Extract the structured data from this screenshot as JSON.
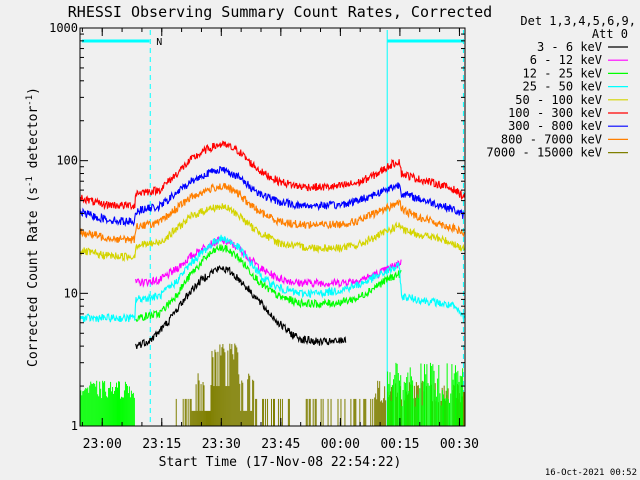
{
  "chart_data": {
    "type": "line",
    "title": "RHESSI Observing Summary Count Rates, Corrected",
    "xlabel": "Start Time (17-Nov-08 22:54:22)",
    "ylabel": "Corrected Count Rate (s⁻¹ detector⁻¹)",
    "ylabel_parts": {
      "pre": "Corrected Count Rate (s",
      "sup1": "-1",
      "mid": " detector",
      "sup2": "-1",
      "post": ")"
    },
    "yscale": "log",
    "ylim": [
      1,
      1000
    ],
    "xlim_minutes": [
      0,
      97
    ],
    "x_ticks": [
      {
        "label": "23:00",
        "min": 5.6
      },
      {
        "label": "23:15",
        "min": 20.6
      },
      {
        "label": "23:30",
        "min": 35.6
      },
      {
        "label": "23:45",
        "min": 50.6
      },
      {
        "label": "00:00",
        "min": 65.6
      },
      {
        "label": "00:15",
        "min": 80.6
      },
      {
        "label": "00:30",
        "min": 95.6
      }
    ],
    "y_ticks": [
      {
        "label": "1",
        "value": 1
      },
      {
        "label": "10",
        "value": 10
      },
      {
        "label": "100",
        "value": 100
      },
      {
        "label": "1000",
        "value": 1000
      }
    ],
    "legend": {
      "header": [
        "Det 1,3,4,5,6,9,",
        "Att 0"
      ],
      "placement": "top-right, outside plot"
    },
    "footer_date": "16-Oct-2021 00:52",
    "flags": {
      "night_label": "N",
      "night_bars": [
        [
          0.5,
          17.5
        ],
        [
          77.5,
          96.5
        ]
      ],
      "dashed_markers": [
        17.7,
        96.6
      ],
      "solid_markers": [
        77.4
      ],
      "color": "#00ffff"
    },
    "series": [
      {
        "name": "3 - 6 keV",
        "color": "#000000",
        "start": 14,
        "end": 67,
        "values": [
          [
            14,
            4
          ],
          [
            18,
            4.5
          ],
          [
            22,
            6
          ],
          [
            25,
            8
          ],
          [
            28,
            10.5
          ],
          [
            31,
            13
          ],
          [
            34,
            15
          ],
          [
            36,
            15.5
          ],
          [
            38,
            14.5
          ],
          [
            41,
            12
          ],
          [
            44,
            9.5
          ],
          [
            47,
            7.5
          ],
          [
            50,
            6
          ],
          [
            53,
            5
          ],
          [
            56,
            4.5
          ],
          [
            60,
            4.3
          ],
          [
            64,
            4.3
          ],
          [
            67,
            4.5
          ]
        ]
      },
      {
        "name": "6 - 12 keV",
        "color": "#ff00ff",
        "start": 14,
        "end": 81,
        "values": [
          [
            14,
            12
          ],
          [
            20,
            12.5
          ],
          [
            24,
            15
          ],
          [
            28,
            19
          ],
          [
            32,
            23
          ],
          [
            35,
            25
          ],
          [
            37,
            24.5
          ],
          [
            40,
            22
          ],
          [
            43,
            18
          ],
          [
            46,
            15
          ],
          [
            50,
            13
          ],
          [
            55,
            12
          ],
          [
            60,
            12
          ],
          [
            65,
            12
          ],
          [
            70,
            12.5
          ],
          [
            75,
            14
          ],
          [
            78,
            15.5
          ],
          [
            80.5,
            17
          ]
        ]
      },
      {
        "name": "12 - 25 keV",
        "color": "#00ff00",
        "start": 14,
        "end": 81,
        "values": [
          [
            14,
            6.5
          ],
          [
            20,
            7
          ],
          [
            24,
            9.5
          ],
          [
            28,
            14
          ],
          [
            32,
            19
          ],
          [
            35,
            22
          ],
          [
            37,
            21.5
          ],
          [
            40,
            18.5
          ],
          [
            43,
            14.5
          ],
          [
            46,
            11.5
          ],
          [
            50,
            9.5
          ],
          [
            55,
            8.5
          ],
          [
            60,
            8.3
          ],
          [
            65,
            8.5
          ],
          [
            70,
            9.2
          ],
          [
            75,
            11.5
          ],
          [
            78,
            13
          ],
          [
            80.5,
            14
          ]
        ]
      },
      {
        "name": "25 - 50 keV",
        "color": "#00ffff",
        "start": 0,
        "end": 97,
        "values": [
          [
            0,
            6.5
          ],
          [
            5,
            6.5
          ],
          [
            10,
            6.5
          ],
          [
            13.8,
            6.5
          ],
          [
            14,
            9
          ],
          [
            20,
            9.5
          ],
          [
            24,
            12
          ],
          [
            28,
            17
          ],
          [
            32,
            22
          ],
          [
            35,
            26
          ],
          [
            37,
            25.5
          ],
          [
            40,
            22
          ],
          [
            43,
            17
          ],
          [
            46,
            13
          ],
          [
            50,
            11
          ],
          [
            55,
            10
          ],
          [
            60,
            10
          ],
          [
            65,
            10.5
          ],
          [
            70,
            11.5
          ],
          [
            75,
            13.5
          ],
          [
            78,
            15
          ],
          [
            80.5,
            16
          ],
          [
            81,
            9.5
          ],
          [
            85,
            9
          ],
          [
            90,
            8.5
          ],
          [
            94,
            8
          ],
          [
            97,
            6.5
          ]
        ]
      },
      {
        "name": "50 - 100 keV",
        "color": "#d4d400",
        "start": 0,
        "end": 97,
        "values": [
          [
            0,
            21
          ],
          [
            5,
            19.5
          ],
          [
            10,
            19
          ],
          [
            13.8,
            19
          ],
          [
            14,
            23
          ],
          [
            20,
            24
          ],
          [
            24,
            30
          ],
          [
            28,
            38
          ],
          [
            32,
            43
          ],
          [
            35,
            45
          ],
          [
            37,
            44
          ],
          [
            40,
            39
          ],
          [
            43,
            32
          ],
          [
            46,
            28
          ],
          [
            50,
            24
          ],
          [
            55,
            22.5
          ],
          [
            60,
            22
          ],
          [
            65,
            22
          ],
          [
            70,
            23
          ],
          [
            75,
            27
          ],
          [
            78,
            30
          ],
          [
            80.5,
            33
          ],
          [
            81,
            30
          ],
          [
            85,
            28
          ],
          [
            90,
            26
          ],
          [
            94,
            24
          ],
          [
            97,
            21
          ]
        ]
      },
      {
        "name": "100 - 300 keV",
        "color": "#ff0000",
        "start": 0,
        "end": 97,
        "values": [
          [
            0,
            53
          ],
          [
            5,
            47
          ],
          [
            10,
            46
          ],
          [
            13.8,
            46
          ],
          [
            14,
            57
          ],
          [
            20,
            60
          ],
          [
            24,
            78
          ],
          [
            28,
            102
          ],
          [
            32,
            122
          ],
          [
            35,
            132
          ],
          [
            37,
            130
          ],
          [
            40,
            118
          ],
          [
            43,
            96
          ],
          [
            46,
            81
          ],
          [
            50,
            70
          ],
          [
            55,
            64
          ],
          [
            60,
            63
          ],
          [
            65,
            64
          ],
          [
            70,
            68
          ],
          [
            75,
            80
          ],
          [
            78,
            92
          ],
          [
            80.5,
            100
          ],
          [
            81,
            80
          ],
          [
            85,
            73
          ],
          [
            90,
            67
          ],
          [
            94,
            61
          ],
          [
            97,
            53
          ]
        ]
      },
      {
        "name": "300 - 800 keV",
        "color": "#0000ff",
        "start": 0,
        "end": 97,
        "values": [
          [
            0,
            41
          ],
          [
            5,
            37
          ],
          [
            10,
            35
          ],
          [
            13.8,
            35
          ],
          [
            14,
            42
          ],
          [
            20,
            45
          ],
          [
            24,
            56
          ],
          [
            28,
            70
          ],
          [
            32,
            80
          ],
          [
            35,
            86
          ],
          [
            37,
            84
          ],
          [
            40,
            75
          ],
          [
            43,
            63
          ],
          [
            46,
            55
          ],
          [
            50,
            49
          ],
          [
            55,
            46
          ],
          [
            60,
            46
          ],
          [
            65,
            46
          ],
          [
            70,
            50
          ],
          [
            75,
            57
          ],
          [
            78,
            62
          ],
          [
            80.5,
            66
          ],
          [
            81,
            57
          ],
          [
            85,
            52
          ],
          [
            90,
            47
          ],
          [
            94,
            43
          ],
          [
            97,
            38
          ]
        ]
      },
      {
        "name": "800 - 7000 keV",
        "color": "#ff7f00",
        "start": 0,
        "end": 97,
        "values": [
          [
            0,
            29
          ],
          [
            5,
            27
          ],
          [
            10,
            25.5
          ],
          [
            13.8,
            25.5
          ],
          [
            14,
            32
          ],
          [
            20,
            34
          ],
          [
            24,
            43
          ],
          [
            28,
            53
          ],
          [
            32,
            60
          ],
          [
            35,
            64
          ],
          [
            37,
            63
          ],
          [
            40,
            56
          ],
          [
            43,
            46
          ],
          [
            46,
            40
          ],
          [
            50,
            35
          ],
          [
            55,
            33
          ],
          [
            60,
            33
          ],
          [
            65,
            33
          ],
          [
            70,
            35
          ],
          [
            75,
            41
          ],
          [
            78,
            45
          ],
          [
            80.5,
            49
          ],
          [
            81,
            43
          ],
          [
            85,
            38
          ],
          [
            90,
            34
          ],
          [
            94,
            31
          ],
          [
            97,
            28
          ]
        ]
      },
      {
        "name": "7000 - 15000 keV",
        "color": "#7f7f00",
        "start": 24,
        "end": 97,
        "values": []
      }
    ]
  }
}
